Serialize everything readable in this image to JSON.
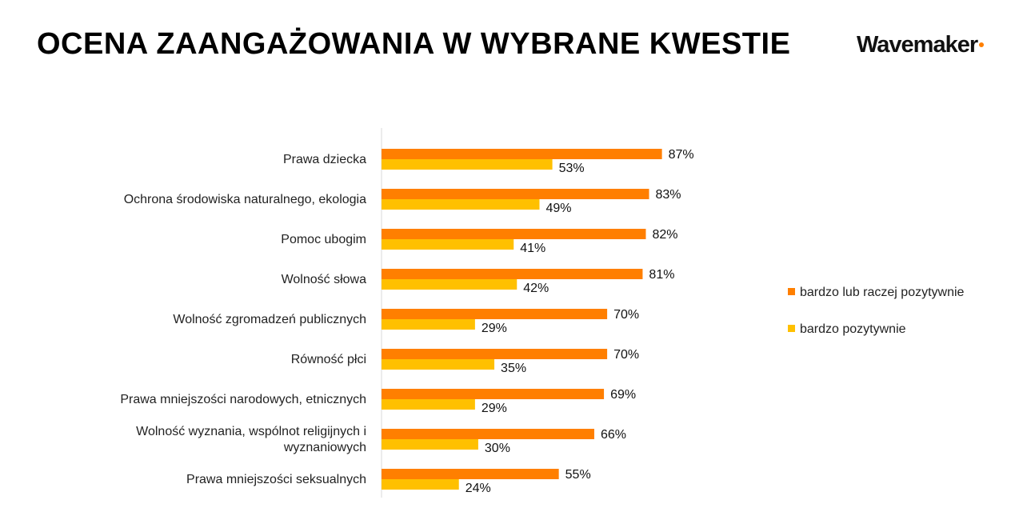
{
  "title": "OCENA ZAANGAŻOWANIA W WYBRANE KWESTIE",
  "logo": "Wavemaker",
  "chart_data": {
    "type": "bar",
    "orientation": "horizontal",
    "title": "OCENA ZAANGAŻOWANIA W WYBRANE KWESTIE",
    "categories": [
      [
        "Prawa dziecka"
      ],
      [
        "Ochrona środowiska naturalnego, ekologia"
      ],
      [
        "Pomoc ubogim"
      ],
      [
        "Wolność słowa"
      ],
      [
        "Wolność zgromadzeń publicznych"
      ],
      [
        "Równość płci"
      ],
      [
        "Prawa mniejszości narodowych, etnicznych"
      ],
      [
        "Wolność wyznania, wspólnot religijnych i",
        "wyznaniowych"
      ],
      [
        "Prawa mniejszości seksualnych"
      ]
    ],
    "series": [
      {
        "name": "bardzo lub raczej pozytywnie",
        "color": "#ff7f00",
        "values": [
          87,
          83,
          82,
          81,
          70,
          70,
          69,
          66,
          55
        ]
      },
      {
        "name": "bardzo pozytywnie",
        "color": "#ffc000",
        "values": [
          53,
          49,
          41,
          42,
          29,
          35,
          29,
          30,
          24
        ]
      }
    ],
    "value_suffix": "%",
    "xlim": [
      0,
      100
    ],
    "legend": "right",
    "grid": false
  }
}
